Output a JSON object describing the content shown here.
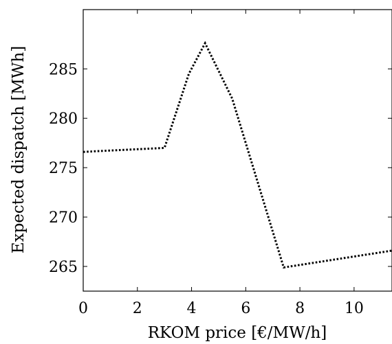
{
  "chart_data": {
    "type": "line",
    "title": "",
    "xlabel": "RKOM price [€/MW/h]",
    "ylabel": "Expected dispatch [MWh]",
    "xlim": [
      0,
      11.4
    ],
    "ylim": [
      262.5,
      291.0
    ],
    "x_ticks": [
      0,
      2,
      4,
      6,
      8,
      10
    ],
    "y_ticks": [
      265,
      270,
      275,
      280,
      285
    ],
    "grid": false,
    "legend": "none",
    "series": [
      {
        "color": "#000000",
        "line_style": "dotted",
        "x": [
          0,
          3.0,
          3.9,
          4.5,
          5.5,
          7.4,
          11.4
        ],
        "y": [
          276.6,
          277.0,
          284.5,
          287.6,
          282.0,
          264.9,
          266.6
        ]
      }
    ]
  }
}
